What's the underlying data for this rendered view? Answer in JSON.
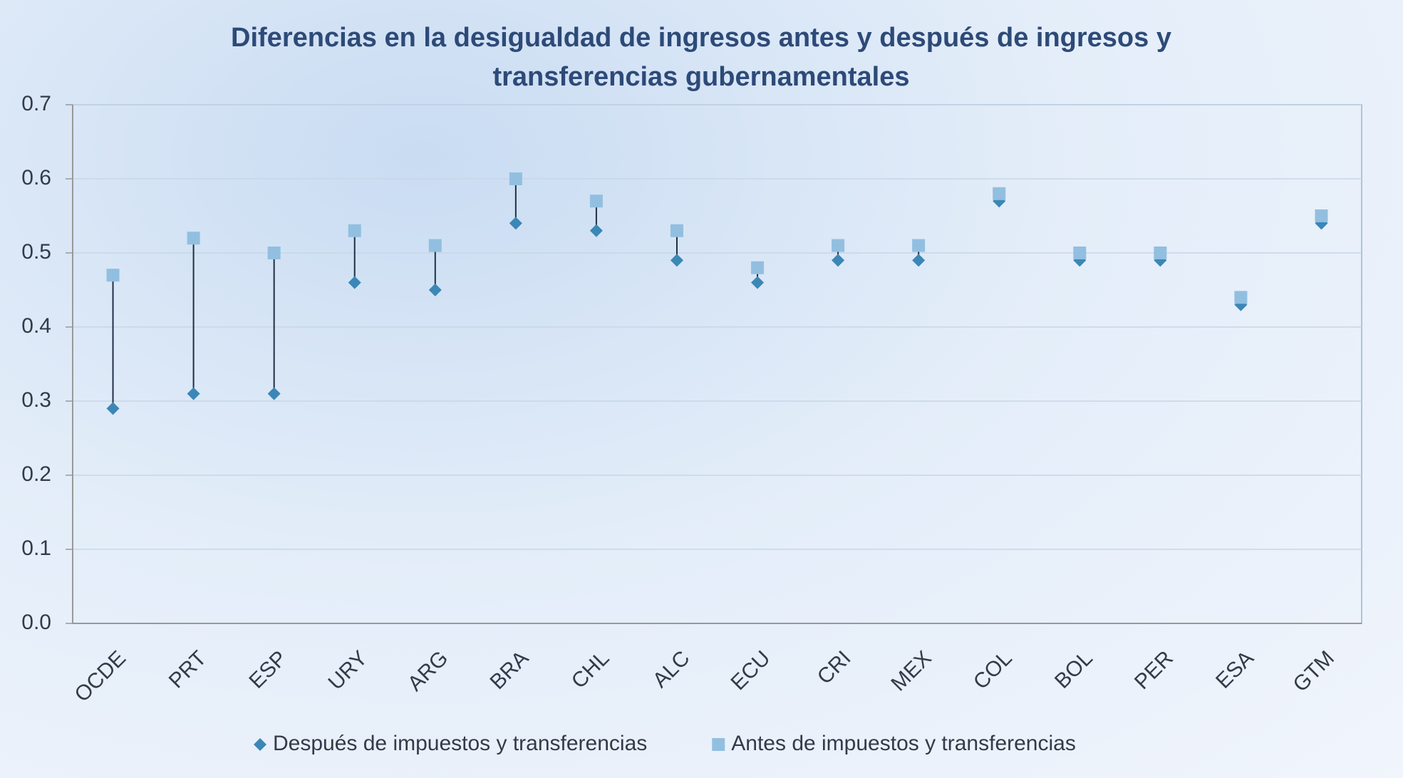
{
  "chart_data": {
    "type": "dot",
    "title": "Diferencias en la desigualdad de ingresos antes y después de ingresos y transferencias gubernamentales",
    "categories": [
      "OCDE",
      "PRT",
      "ESP",
      "URY",
      "ARG",
      "BRA",
      "CHL",
      "ALC",
      "ECU",
      "CRI",
      "MEX",
      "COL",
      "BOL",
      "PER",
      "ESA",
      "GTM"
    ],
    "series": [
      {
        "name": "Después de impuestos y transferencias",
        "color": "#3b87b6",
        "marker": "diamond",
        "values": [
          0.29,
          0.31,
          0.31,
          0.46,
          0.45,
          0.54,
          0.53,
          0.49,
          0.46,
          0.49,
          0.49,
          0.57,
          0.49,
          0.49,
          0.43,
          0.54
        ]
      },
      {
        "name": "Antes de impuestos y transferencias",
        "color": "#92bfe0",
        "marker": "square",
        "values": [
          0.47,
          0.52,
          0.5,
          0.53,
          0.51,
          0.6,
          0.57,
          0.53,
          0.48,
          0.51,
          0.51,
          0.58,
          0.5,
          0.5,
          0.44,
          0.55
        ]
      }
    ],
    "ylim": [
      0,
      0.7
    ],
    "yticks": [
      {
        "value": 0,
        "label": "0.0"
      },
      0.1,
      0.2,
      0.3,
      0.4,
      0.5,
      0.6,
      0.7
    ],
    "grid": true,
    "legend": "bottom"
  }
}
